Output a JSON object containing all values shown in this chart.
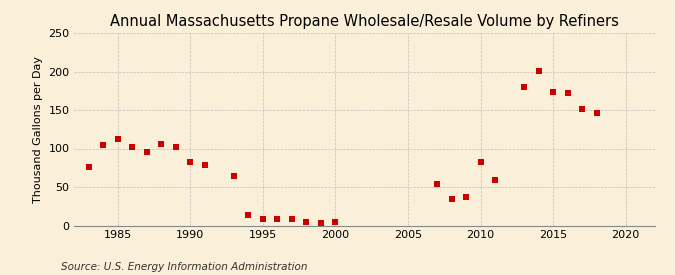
{
  "title": "Annual Massachusetts Propane Wholesale/Resale Volume by Refiners",
  "ylabel": "Thousand Gallons per Day",
  "source": "Source: U.S. Energy Information Administration",
  "years": [
    1983,
    1984,
    1985,
    1986,
    1987,
    1988,
    1989,
    1990,
    1991,
    1993,
    1994,
    1995,
    1996,
    1997,
    1998,
    1999,
    2000,
    2007,
    2008,
    2009,
    2010,
    2011,
    2013,
    2014,
    2015,
    2016,
    2017,
    2018
  ],
  "values": [
    76,
    105,
    112,
    102,
    95,
    106,
    102,
    82,
    79,
    64,
    13,
    8,
    8,
    8,
    5,
    3,
    5,
    54,
    35,
    37,
    82,
    59,
    180,
    201,
    173,
    172,
    151,
    146
  ],
  "xlim": [
    1982,
    2022
  ],
  "ylim": [
    0,
    250
  ],
  "yticks": [
    0,
    50,
    100,
    150,
    200,
    250
  ],
  "xticks": [
    1985,
    1990,
    1995,
    2000,
    2005,
    2010,
    2015,
    2020
  ],
  "marker_color": "#cc0000",
  "marker": "s",
  "marker_size": 4,
  "bg_color": "#faefd8",
  "grid_color": "#aaaaaa",
  "title_fontsize": 10.5,
  "label_fontsize": 8,
  "tick_fontsize": 8,
  "source_fontsize": 7.5
}
